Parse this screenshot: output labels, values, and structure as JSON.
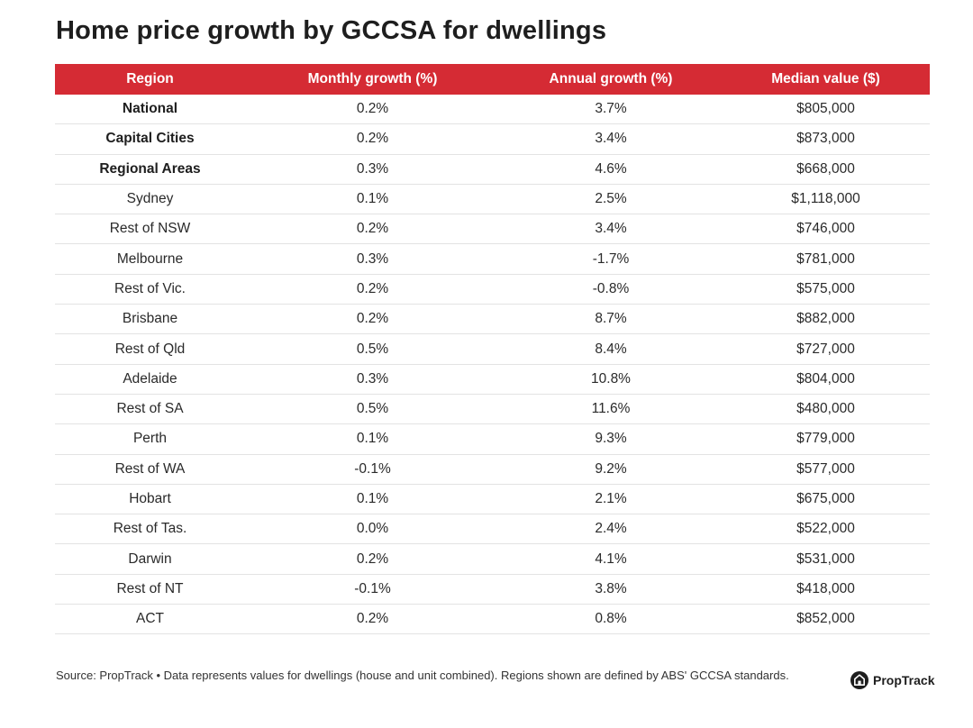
{
  "title": "Home price growth by GCCSA for dwellings",
  "chart_data": {
    "type": "table",
    "columns": [
      "Region",
      "Monthly growth (%)",
      "Annual growth (%)",
      "Median value ($)"
    ],
    "rows": [
      {
        "region": "National",
        "monthly": "0.2%",
        "annual": "3.7%",
        "median": "$805,000",
        "bold": true
      },
      {
        "region": "Capital Cities",
        "monthly": "0.2%",
        "annual": "3.4%",
        "median": "$873,000",
        "bold": true
      },
      {
        "region": "Regional Areas",
        "monthly": "0.3%",
        "annual": "4.6%",
        "median": "$668,000",
        "bold": true
      },
      {
        "region": "Sydney",
        "monthly": "0.1%",
        "annual": "2.5%",
        "median": "$1,118,000",
        "bold": false
      },
      {
        "region": "Rest of NSW",
        "monthly": "0.2%",
        "annual": "3.4%",
        "median": "$746,000",
        "bold": false
      },
      {
        "region": "Melbourne",
        "monthly": "0.3%",
        "annual": "-1.7%",
        "median": "$781,000",
        "bold": false
      },
      {
        "region": "Rest of Vic.",
        "monthly": "0.2%",
        "annual": "-0.8%",
        "median": "$575,000",
        "bold": false
      },
      {
        "region": "Brisbane",
        "monthly": "0.2%",
        "annual": "8.7%",
        "median": "$882,000",
        "bold": false
      },
      {
        "region": "Rest of Qld",
        "monthly": "0.5%",
        "annual": "8.4%",
        "median": "$727,000",
        "bold": false
      },
      {
        "region": "Adelaide",
        "monthly": "0.3%",
        "annual": "10.8%",
        "median": "$804,000",
        "bold": false
      },
      {
        "region": "Rest of SA",
        "monthly": "0.5%",
        "annual": "11.6%",
        "median": "$480,000",
        "bold": false
      },
      {
        "region": "Perth",
        "monthly": "0.1%",
        "annual": "9.3%",
        "median": "$779,000",
        "bold": false
      },
      {
        "region": "Rest of WA",
        "monthly": "-0.1%",
        "annual": "9.2%",
        "median": "$577,000",
        "bold": false
      },
      {
        "region": "Hobart",
        "monthly": "0.1%",
        "annual": "2.1%",
        "median": "$675,000",
        "bold": false
      },
      {
        "region": "Rest of Tas.",
        "monthly": "0.0%",
        "annual": "2.4%",
        "median": "$522,000",
        "bold": false
      },
      {
        "region": "Darwin",
        "monthly": "0.2%",
        "annual": "4.1%",
        "median": "$531,000",
        "bold": false
      },
      {
        "region": "Rest of NT",
        "monthly": "-0.1%",
        "annual": "3.8%",
        "median": "$418,000",
        "bold": false
      },
      {
        "region": "ACT",
        "monthly": "0.2%",
        "annual": "0.8%",
        "median": "$852,000",
        "bold": false
      }
    ]
  },
  "footer": {
    "source": "Source: PropTrack • Data represents values for dwellings (house and unit combined). Regions shown are defined by ABS' GCCSA standards."
  },
  "logo": {
    "text": "PropTrack",
    "icon": "house-logo-icon"
  },
  "colors": {
    "header_bg": "#d52b34",
    "header_text": "#ffffff",
    "divider": "#e3e3e3"
  }
}
